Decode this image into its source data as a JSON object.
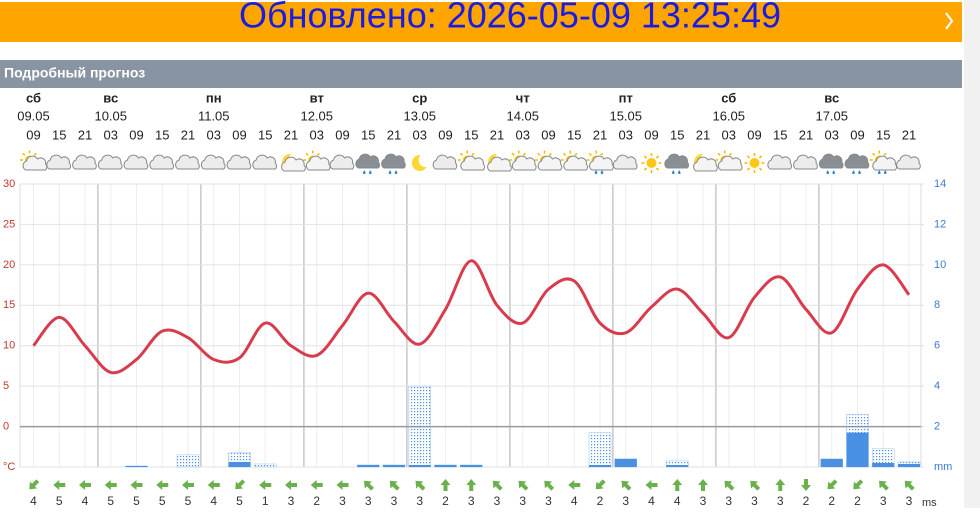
{
  "banner": {
    "text": "Обновлено: 2026-05-09 13:25:49"
  },
  "section_title": "Подробный прогноз",
  "chart_data": {
    "type": "line",
    "days": [
      {
        "name": "сб",
        "date": "09.05"
      },
      {
        "name": "вс",
        "date": "10.05"
      },
      {
        "name": "пн",
        "date": "11.05"
      },
      {
        "name": "вт",
        "date": "12.05"
      },
      {
        "name": "ср",
        "date": "13.05"
      },
      {
        "name": "чт",
        "date": "14.05"
      },
      {
        "name": "пт",
        "date": "15.05"
      },
      {
        "name": "сб",
        "date": "16.05"
      },
      {
        "name": "вс",
        "date": "17.05"
      }
    ],
    "categories": [
      "09",
      "15",
      "21",
      "03",
      "09",
      "15",
      "21",
      "03",
      "09",
      "15",
      "21",
      "03",
      "09",
      "15",
      "21",
      "03",
      "09",
      "15",
      "21",
      "03",
      "09",
      "15",
      "21",
      "03",
      "09",
      "15",
      "21",
      "03",
      "09",
      "15",
      "21",
      "03",
      "09",
      "15",
      "21"
    ],
    "series": [
      {
        "color": "#d83c4c",
        "values": [
          10,
          13.5,
          10,
          6.7,
          8.3,
          11.8,
          11,
          8.3,
          8.5,
          12.8,
          10,
          8.8,
          12.5,
          16.5,
          13,
          10.2,
          14.5,
          20.5,
          15,
          12.8,
          17,
          18,
          12.8,
          11.6,
          14.8,
          17,
          14,
          11,
          16,
          18.5,
          14.5,
          11.6,
          17,
          20,
          16.3
        ]
      },
      {
        "color": "#4a90e2",
        "axis": "y2",
        "values": [
          0,
          0,
          0,
          0,
          0.05,
          0,
          0,
          0,
          0.25,
          0,
          0,
          0,
          0,
          0.1,
          0.1,
          0.1,
          0.1,
          0.1,
          0,
          0,
          0,
          0,
          0.1,
          0.4,
          0,
          0.1,
          0,
          0,
          0,
          0,
          0,
          0.4,
          1.7,
          0.2,
          0.15
        ],
        "max_values": [
          0,
          0,
          0,
          0,
          0.05,
          0,
          0.6,
          0,
          0.7,
          0.15,
          0,
          0,
          0,
          0.1,
          0.1,
          4,
          0.1,
          0.1,
          0,
          0,
          0,
          0,
          1.7,
          0.4,
          0,
          0.3,
          0,
          0,
          0,
          0,
          0,
          0.4,
          2.6,
          0.9,
          0.25
        ]
      }
    ],
    "ylim": [
      -5,
      30
    ],
    "yticks": [
      {
        "value": -5,
        "label": "°C"
      },
      0,
      5,
      10,
      15,
      20,
      25,
      30
    ],
    "y2lim": [
      0,
      14
    ],
    "y2ticks": [
      {
        "value": 0,
        "label": "mm"
      },
      2,
      4,
      6,
      8,
      10,
      12,
      14
    ],
    "grid": true,
    "wind": [
      4,
      5,
      4,
      5,
      5,
      5,
      5,
      4,
      5,
      1,
      3,
      2,
      3,
      3,
      3,
      3,
      2,
      3,
      3,
      3,
      3,
      4,
      2,
      3,
      4,
      4,
      3,
      3,
      3,
      3,
      2,
      2,
      2,
      3,
      3
    ],
    "wind_unit": "ms"
  }
}
